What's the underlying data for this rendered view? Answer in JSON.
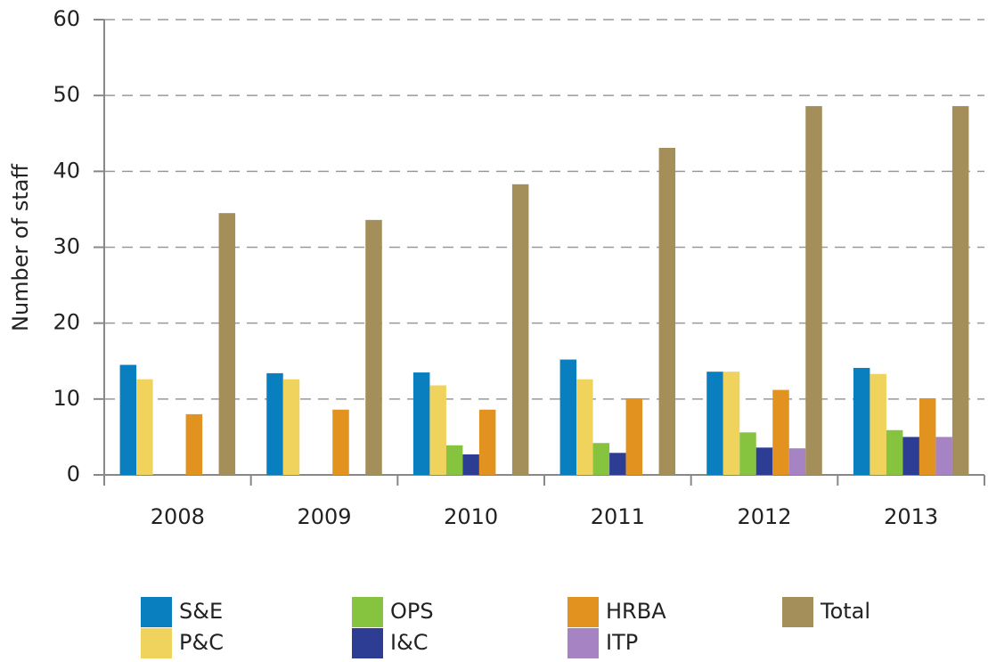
{
  "chart_data": {
    "type": "bar",
    "y_label": "Number of staff",
    "categories": [
      "2008",
      "2009",
      "2010",
      "2011",
      "2012",
      "2013"
    ],
    "series": [
      {
        "name": "S&E",
        "color": "#0a7fc0",
        "values": [
          14.5,
          13.4,
          13.5,
          15.2,
          13.6,
          14.1
        ]
      },
      {
        "name": "P&C",
        "color": "#f0d35c",
        "values": [
          12.6,
          12.6,
          11.8,
          12.6,
          13.6,
          13.3
        ]
      },
      {
        "name": "OPS",
        "color": "#86c440",
        "values": [
          null,
          null,
          3.9,
          4.2,
          5.6,
          5.9
        ]
      },
      {
        "name": "I&C",
        "color": "#2e3d94",
        "values": [
          null,
          null,
          2.7,
          2.9,
          3.6,
          5.0
        ]
      },
      {
        "name": "HRBA",
        "color": "#e2921f",
        "values": [
          8.0,
          8.6,
          8.6,
          10.1,
          11.2,
          10.1
        ]
      },
      {
        "name": "ITP",
        "color": "#a683c2",
        "values": [
          null,
          null,
          null,
          null,
          3.5,
          5.0
        ]
      },
      {
        "name": "Total",
        "color": "#a48e5a",
        "values": [
          34.5,
          33.6,
          38.3,
          43.1,
          48.6,
          48.6
        ]
      }
    ],
    "ylim": [
      0,
      60
    ],
    "yticks": [
      0,
      10,
      20,
      30,
      40,
      50,
      60
    ],
    "grid": true,
    "legend": "bottom"
  }
}
